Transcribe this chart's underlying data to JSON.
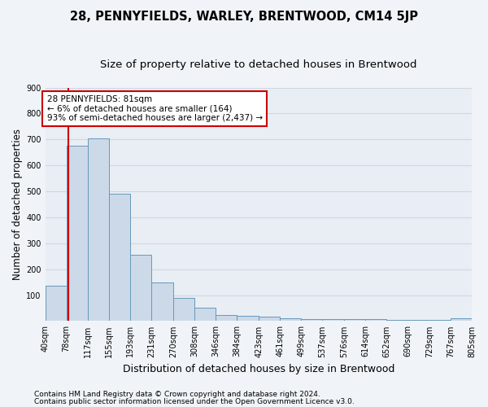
{
  "title": "28, PENNYFIELDS, WARLEY, BRENTWOOD, CM14 5JP",
  "subtitle": "Size of property relative to detached houses in Brentwood",
  "xlabel": "Distribution of detached houses by size in Brentwood",
  "ylabel": "Number of detached properties",
  "bar_values": [
    135,
    675,
    705,
    490,
    255,
    150,
    88,
    50,
    22,
    20,
    18,
    10,
    8,
    8,
    8,
    8,
    5,
    5,
    5,
    10
  ],
  "bin_edges": [
    40,
    78,
    117,
    155,
    193,
    231,
    270,
    308,
    346,
    384,
    423,
    461,
    499,
    537,
    576,
    614,
    652,
    690,
    729,
    767,
    805
  ],
  "tick_labels": [
    "40sqm",
    "78sqm",
    "117sqm",
    "155sqm",
    "193sqm",
    "231sqm",
    "270sqm",
    "308sqm",
    "346sqm",
    "384sqm",
    "423sqm",
    "461sqm",
    "499sqm",
    "537sqm",
    "576sqm",
    "614sqm",
    "652sqm",
    "690sqm",
    "729sqm",
    "767sqm",
    "805sqm"
  ],
  "bar_color": "#ccd9e8",
  "bar_edge_color": "#6699bb",
  "property_size": 81,
  "red_line_color": "#cc0000",
  "annotation_text": "28 PENNYFIELDS: 81sqm\n← 6% of detached houses are smaller (164)\n93% of semi-detached houses are larger (2,437) →",
  "annotation_box_color": "#ffffff",
  "annotation_box_edge": "#cc0000",
  "ylim": [
    0,
    900
  ],
  "yticks": [
    0,
    100,
    200,
    300,
    400,
    500,
    600,
    700,
    800,
    900
  ],
  "footnote1": "Contains HM Land Registry data © Crown copyright and database right 2024.",
  "footnote2": "Contains public sector information licensed under the Open Government Licence v3.0.",
  "background_color": "#f0f4f8",
  "plot_background": "#e8eef4",
  "grid_color": "#d0d8e0",
  "title_fontsize": 10.5,
  "subtitle_fontsize": 9.5,
  "axis_label_fontsize": 8.5,
  "tick_fontsize": 7,
  "footnote_fontsize": 6.5
}
